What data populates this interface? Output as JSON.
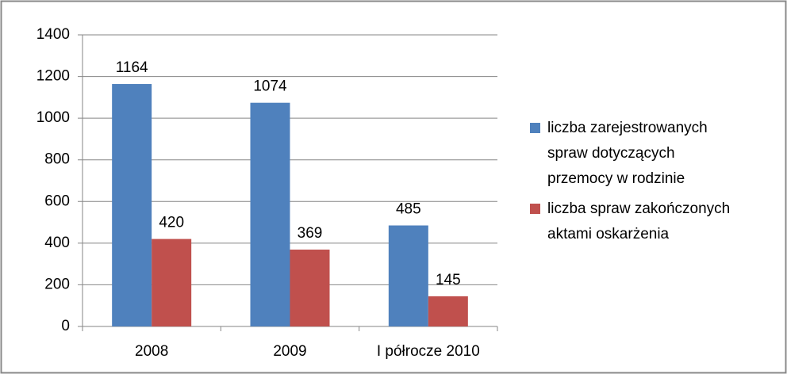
{
  "chart_data": {
    "type": "bar",
    "categories": [
      "2008",
      "2009",
      "I półrocze 2010"
    ],
    "series": [
      {
        "name": "liczba zarejestrowanych spraw dotyczących przemocy w rodzinie",
        "color": "#4f81bd",
        "values": [
          1164,
          1074,
          485
        ]
      },
      {
        "name": "liczba spraw zakończonych aktami oskarżenia",
        "color": "#c0504d",
        "values": [
          420,
          369,
          145
        ]
      }
    ],
    "ylim": [
      0,
      1400
    ],
    "yticks": [
      0,
      200,
      400,
      600,
      800,
      1000,
      1200,
      1400
    ],
    "grid": true,
    "legend": "right"
  }
}
